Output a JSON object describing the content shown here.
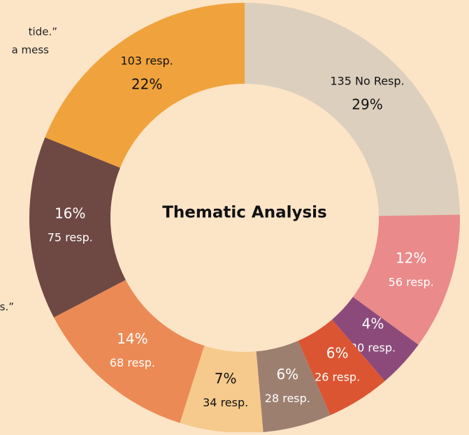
{
  "chart_data": {
    "type": "donut",
    "title": "Thematic Analysis",
    "values": [
      135,
      56,
      20,
      26,
      28,
      34,
      68,
      75,
      103
    ],
    "value_labels": [
      "135 No Resp.",
      "56 resp.",
      "20 resp.",
      "26 resp.",
      "28 resp.",
      "34 resp.",
      "68 resp.",
      "75 resp.",
      "103 resp."
    ],
    "percent_labels": [
      "29%",
      "12%",
      "4%",
      "6%",
      "6%",
      "7%",
      "14%",
      "16%",
      "22%"
    ],
    "colors": [
      "#dccfbd",
      "#ea8a8b",
      "#8c4a7b",
      "#dc5532",
      "#9d7f70",
      "#f5ca8c",
      "#ec8a55",
      "#6e4843",
      "#f0a33d"
    ]
  },
  "fragments": [
    "tide.”",
    "a mess",
    "s.”"
  ]
}
